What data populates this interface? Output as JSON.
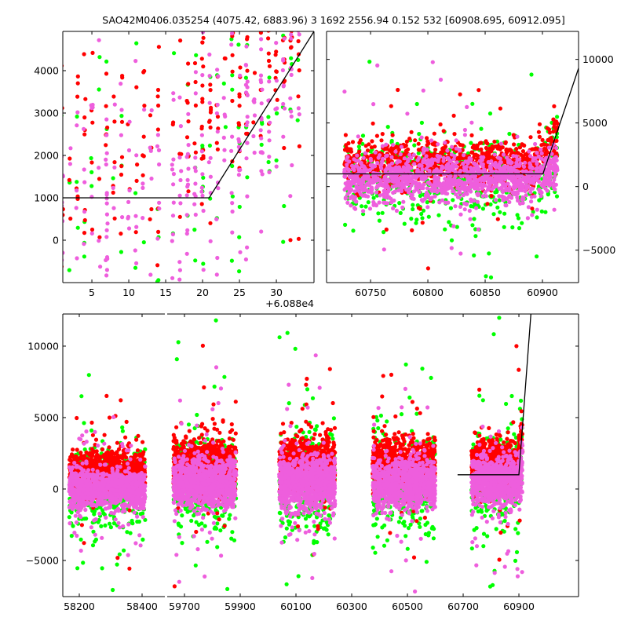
{
  "chart_data": {
    "type": "scatter",
    "title": "SAO42M0406.035254 (4075.42, 6883.96)  3 1692 2556.94 0.152 532 [60908.695, 60912.095]",
    "colors": {
      "red": "#ff0000",
      "green": "#00ff00",
      "pink": "#ee5edd",
      "fit": "#000000"
    },
    "series": [
      {
        "name": "red",
        "color": "#ff0000",
        "offset": 1300
      },
      {
        "name": "green",
        "color": "#00ff00",
        "offset": 0
      },
      {
        "name": "pink",
        "color": "#ee5edd",
        "offset": 0
      }
    ],
    "panels": [
      {
        "id": "top-left",
        "xlim": [
          60881.06,
          60915.1
        ],
        "ylim": [
          -1000,
          4926
        ],
        "x_offset_label": "+6.088e4",
        "x_ticks": [
          60885,
          60890,
          60895,
          60900,
          60905,
          60910
        ],
        "x_tick_labels": [
          "5",
          "10",
          "15",
          "20",
          "25",
          "30"
        ],
        "y_ticks": [
          0,
          1000,
          2000,
          3000,
          4000
        ],
        "y_tick_labels": [
          "0",
          "1000",
          "2000",
          "3000",
          "4000"
        ],
        "y_axis_side": "left",
        "fit_line": [
          [
            60881.06,
            1000
          ],
          [
            60900.9,
            1000
          ],
          [
            60915.1,
            4926
          ]
        ],
        "clusters": [
          {
            "t0": 60881,
            "t1": 60894,
            "base": 800,
            "spread": 1400,
            "n": 220,
            "nightly": true
          },
          {
            "t0": 60896,
            "t1": 60913,
            "base": 1500,
            "spread": 1300,
            "n": 420,
            "nightly": true,
            "trend": 120
          }
        ]
      },
      {
        "id": "top-right",
        "xlim": [
          60711.6,
          60931.5
        ],
        "ylim": [
          -7550,
          12200
        ],
        "x_ticks": [
          60750,
          60800,
          60850,
          60900
        ],
        "x_tick_labels": [
          "60750",
          "60800",
          "60850",
          "60900"
        ],
        "y_ticks": [
          -5000,
          0,
          5000,
          10000
        ],
        "y_tick_labels": [
          "−5000",
          "0",
          "5000",
          "10000"
        ],
        "y_axis_side": "right",
        "fit_line": [
          [
            60711.6,
            1000
          ],
          [
            60900.5,
            1000
          ],
          [
            60931.5,
            9300
          ]
        ],
        "clusters": [
          {
            "t0": 60727,
            "t1": 60913,
            "base": 600,
            "spread": 900,
            "n": 2600,
            "nightly": false
          }
        ]
      },
      {
        "id": "bottom-a",
        "xlim": [
          58147.5,
          58472.5
        ],
        "ylim": [
          -7530,
          12250
        ],
        "x_ticks": [
          58200,
          58400
        ],
        "x_tick_labels": [
          "58200",
          "58400"
        ],
        "y_ticks": [
          -5000,
          0,
          5000,
          10000
        ],
        "y_tick_labels": [
          "−5000",
          "0",
          "5000",
          "10000"
        ],
        "y_axis_side": "left",
        "fit_line": [],
        "clusters": [
          {
            "t0": 58168,
            "t1": 58410,
            "base": 0,
            "spread": 700,
            "n": 2200,
            "nightly": false
          }
        ]
      },
      {
        "id": "bottom-b",
        "xlim": [
          59638,
          61114
        ],
        "ylim": [
          -7530,
          12250
        ],
        "x_ticks": [
          59700,
          59900,
          60100,
          60300,
          60500,
          60700,
          60900
        ],
        "x_tick_labels": [
          "59700",
          "59900",
          "60100",
          "60300",
          "60500",
          "60700",
          "60900"
        ],
        "y_ticks": [
          -5000,
          0,
          5000,
          10000
        ],
        "y_tick_labels": [
          "",
          "",
          "",
          ""
        ],
        "y_axis_side": "left",
        "fit_line": [
          [
            60680,
            1000
          ],
          [
            60900,
            1000
          ],
          [
            60943,
            12250
          ]
        ],
        "clusters": [
          {
            "t0": 59660,
            "t1": 59885,
            "base": 400,
            "spread": 850,
            "n": 2200,
            "nightly": false
          },
          {
            "t0": 60040,
            "t1": 60240,
            "base": 400,
            "spread": 900,
            "n": 2200,
            "nightly": false
          },
          {
            "t0": 60375,
            "t1": 60600,
            "base": 400,
            "spread": 850,
            "n": 2200,
            "nightly": false
          },
          {
            "t0": 60730,
            "t1": 60913,
            "base": 500,
            "spread": 850,
            "n": 1800,
            "nightly": false
          }
        ]
      }
    ]
  }
}
